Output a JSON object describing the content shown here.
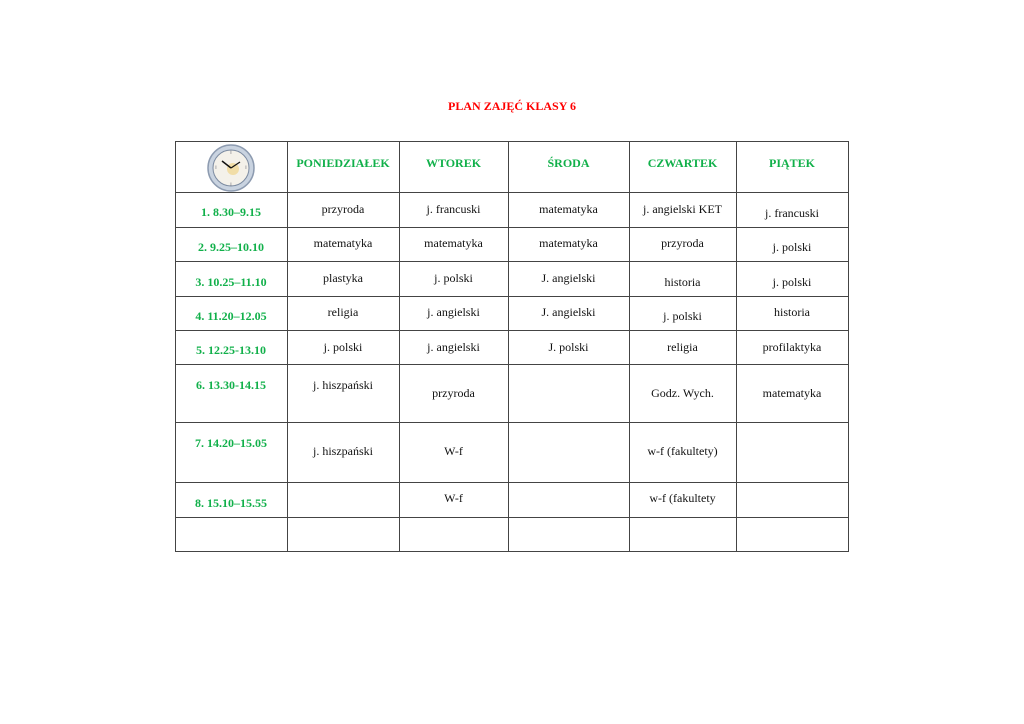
{
  "title": "PLAN ZAJĘĆ KLASY 6",
  "colors": {
    "title": "#ff0000",
    "headers": "#11b04a"
  },
  "corner_icon": "wall-clock-icon",
  "days": [
    "PONIEDZIAŁEK",
    "WTOREK",
    "ŚRODA",
    "CZWARTEK",
    "PIĄTEK"
  ],
  "rows": [
    {
      "time": "1.  8.30–9.15",
      "cells": [
        "przyroda",
        "j. francuski",
        "matematyka",
        "j. angielski KET",
        "j. francuski"
      ]
    },
    {
      "time": "2.  9.25–10.10",
      "cells": [
        "matematyka",
        "matematyka",
        "matematyka",
        "przyroda",
        "j. polski"
      ]
    },
    {
      "time": "3.  10.25–11.10",
      "cells": [
        "plastyka",
        "j. polski",
        "J. angielski",
        "historia",
        "j. polski"
      ]
    },
    {
      "time": "4.  11.20–12.05",
      "cells": [
        "religia",
        "j. angielski",
        "J. angielski",
        "j. polski",
        "historia"
      ]
    },
    {
      "time": "5.  12.25-13.10",
      "cells": [
        "j. polski",
        "j. angielski",
        "J. polski",
        "religia",
        "profilaktyka"
      ]
    },
    {
      "time": "6.  13.30-14.15",
      "cells": [
        "j. hiszpański",
        "przyroda",
        "",
        "Godz. Wych.",
        "matematyka"
      ]
    },
    {
      "time": "7.  14.20–15.05",
      "cells": [
        "j. hiszpański",
        "W-f",
        "",
        "w-f (fakultety)",
        ""
      ]
    },
    {
      "time": "8.  15.10–15.55",
      "cells": [
        "",
        "W-f",
        "",
        "w-f (fakultety",
        ""
      ]
    },
    {
      "time": "",
      "cells": [
        "",
        "",
        "",
        "",
        ""
      ]
    }
  ]
}
